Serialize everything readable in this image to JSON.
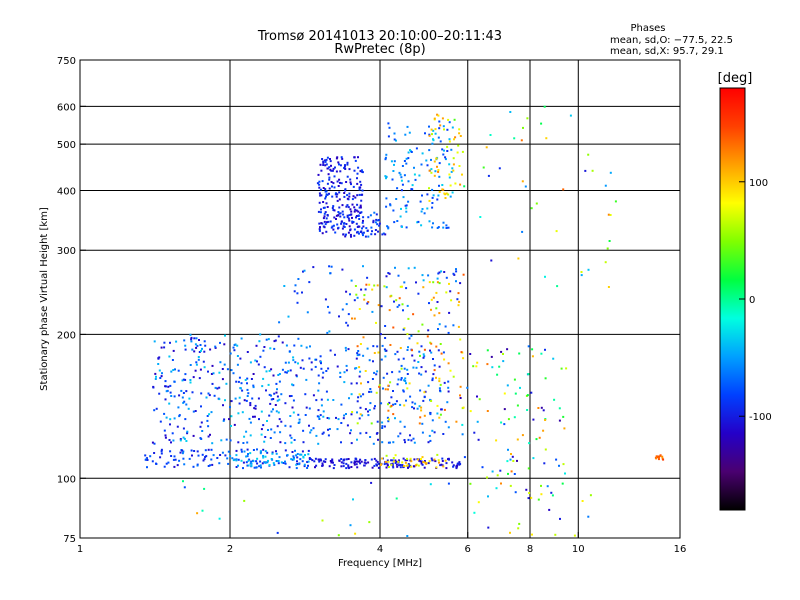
{
  "chart_data": {
    "type": "scatter",
    "title": "Tromsø 20141013 20:10:00–20:11:43",
    "subtitle": "RwPretec (8p)",
    "xlabel": "Frequency [MHz]",
    "ylabel": "Stationary phase Virtual Height [km]",
    "xscale": "log",
    "yscale": "log",
    "xlim": [
      1,
      16
    ],
    "ylim": [
      75,
      750
    ],
    "xticks": [
      1,
      2,
      4,
      6,
      8,
      10,
      16
    ],
    "xtick_labels": [
      "1",
      "2",
      "4",
      "6",
      "8",
      "10",
      "16"
    ],
    "xgrid": [
      2,
      4,
      6,
      8,
      10
    ],
    "yticks": [
      75,
      100,
      200,
      300,
      400,
      500,
      600,
      750
    ],
    "ytick_labels": [
      "75",
      "100",
      "200",
      "300",
      "400",
      "500",
      "600",
      "750"
    ],
    "ygrid": [
      100,
      200,
      300,
      400,
      500,
      600
    ],
    "grid": true,
    "stats_box": {
      "title": "Phases",
      "o_line": "mean, sd,O: −77.5, 22.5",
      "x_line": "mean, sd,X:  95.7, 29.1"
    },
    "colorbar": {
      "label": "[deg]",
      "range": [
        -180,
        180
      ],
      "ticks": [
        100,
        0,
        -100
      ],
      "tick_labels": [
        "100",
        "0",
        "-100"
      ],
      "colors": [
        "#000000",
        "#4a0070",
        "#2400c8",
        "#0040ff",
        "#00a0ff",
        "#00ffe0",
        "#00ff40",
        "#80ff00",
        "#ffff00",
        "#ffa000",
        "#ff4000",
        "#ff0000"
      ]
    },
    "clusters": [
      {
        "f": [
          1.35,
          2.9
        ],
        "h": [
          105,
          115
        ],
        "phase": [
          -110,
          -60
        ],
        "n": 130
      },
      {
        "f": [
          2.0,
          2.9
        ],
        "h": [
          106,
          114
        ],
        "phase": [
          -60,
          -30
        ],
        "n": 50
      },
      {
        "f": [
          2.9,
          5.8
        ],
        "h": [
          105,
          110
        ],
        "phase": [
          -120,
          -90
        ],
        "n": 160
      },
      {
        "f": [
          4.0,
          5.5
        ],
        "h": [
          105,
          112
        ],
        "phase": [
          60,
          120
        ],
        "n": 40
      },
      {
        "f": [
          1.4,
          2.8
        ],
        "h": [
          118,
          200
        ],
        "phase": [
          -120,
          -30
        ],
        "n": 340
      },
      {
        "f": [
          2.8,
          5.5
        ],
        "h": [
          118,
          190
        ],
        "phase": [
          -110,
          -40
        ],
        "n": 260
      },
      {
        "f": [
          3.5,
          5.9
        ],
        "h": [
          130,
          260
        ],
        "phase": [
          40,
          140
        ],
        "n": 120
      },
      {
        "f": [
          2.5,
          5.9
        ],
        "h": [
          195,
          280
        ],
        "phase": [
          -110,
          -40
        ],
        "n": 90
      },
      {
        "f": [
          5.8,
          9.5
        ],
        "h": [
          90,
          190
        ],
        "phase": [
          -130,
          130
        ],
        "n": 110
      },
      {
        "f": [
          3.0,
          3.7
        ],
        "h": [
          320,
          470
        ],
        "phase": [
          -120,
          -80
        ],
        "n": 240
      },
      {
        "f": [
          3.6,
          4.1
        ],
        "h": [
          320,
          360
        ],
        "phase": [
          -110,
          -60
        ],
        "n": 40
      },
      {
        "f": [
          4.1,
          5.6
        ],
        "h": [
          330,
          560
        ],
        "phase": [
          -90,
          -30
        ],
        "n": 140
      },
      {
        "f": [
          5.0,
          5.9
        ],
        "h": [
          380,
          580
        ],
        "phase": [
          60,
          130
        ],
        "n": 50
      },
      {
        "f": [
          5.5,
          12
        ],
        "h": [
          250,
          640
        ],
        "phase": [
          -120,
          140
        ],
        "n": 45
      },
      {
        "f": [
          1.6,
          12
        ],
        "h": [
          75,
          100
        ],
        "phase": [
          -120,
          120
        ],
        "n": 35
      },
      {
        "f": [
          14.3,
          14.8
        ],
        "h": [
          109,
          112
        ],
        "phase": [
          120,
          150
        ],
        "n": 12
      }
    ]
  }
}
